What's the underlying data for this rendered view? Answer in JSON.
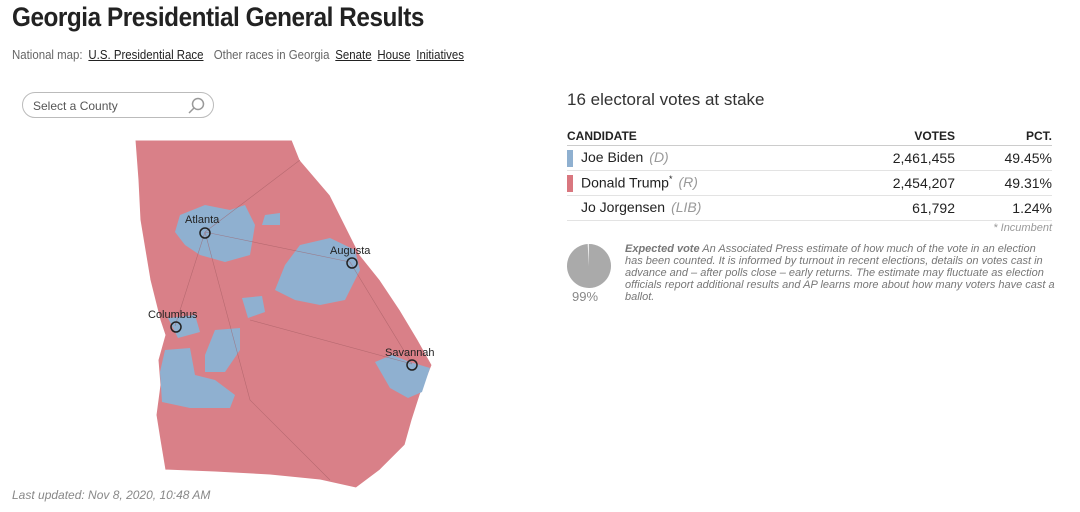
{
  "header": {
    "title": "Georgia Presidential General Results",
    "nav": {
      "national_label": "National map:",
      "national_link": "U.S. Presidential Race",
      "other_label": "Other races in Georgia",
      "links": [
        "Senate",
        "House",
        "Initiatives"
      ]
    }
  },
  "search": {
    "placeholder": "Select a County"
  },
  "map": {
    "cities": [
      {
        "name": "Atlanta"
      },
      {
        "name": "Augusta"
      },
      {
        "name": "Columbus"
      },
      {
        "name": "Savannah"
      }
    ]
  },
  "results": {
    "stake": "16 electoral votes at stake",
    "columns": [
      "CANDIDATE",
      "VOTES",
      "PCT."
    ],
    "rows": [
      {
        "name": "Joe Biden",
        "party": "(D)",
        "votes": "2,461,455",
        "pct": "49.45%",
        "color": "#8fb0d0"
      },
      {
        "name": "Donald Trump",
        "incumbent": "*",
        "party": "(R)",
        "votes": "2,454,207",
        "pct": "49.31%",
        "color": "#d9777f"
      },
      {
        "name": "Jo Jorgensen",
        "party": "(LIB)",
        "votes": "61,792",
        "pct": "1.24%"
      }
    ],
    "footnote": "* Incumbent"
  },
  "expected_vote": {
    "value": 99,
    "label": "99%",
    "term": "Expected vote",
    "text": "An Associated Press estimate of how much of the vote in an election has been counted. It is informed by turnout in recent elections, details on votes cast in advance and – after polls close – early returns. The estimate may fluctuate as election officials report additional results and AP learns more about how many voters have cast a ballot."
  },
  "updated": "Last updated: Nov 8, 2020, 10:48 AM"
}
